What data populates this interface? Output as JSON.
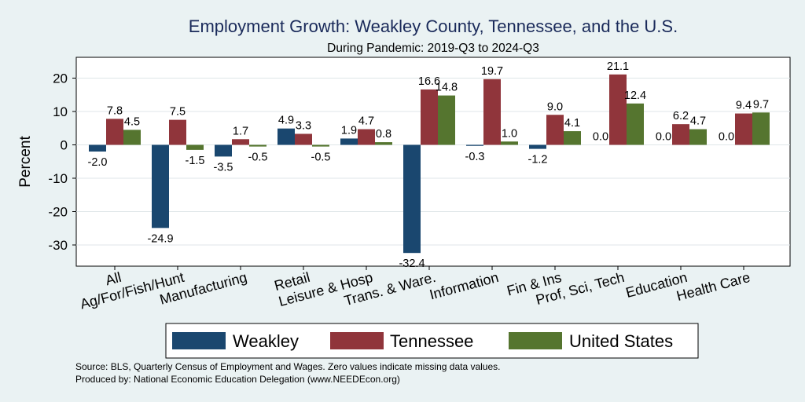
{
  "chart_data": {
    "type": "bar",
    "title": "Employment Growth: Weakley County, Tennessee, and the U.S.",
    "subtitle": "During Pandemic: 2019-Q3 to 2024-Q3",
    "ylabel": "Percent",
    "xlabel": "",
    "ylim": [
      -35,
      25
    ],
    "yticks": [
      20,
      10,
      0,
      -10,
      -20,
      -30
    ],
    "ytick_labels": [
      "20",
      "10",
      "0",
      "-10",
      "-20",
      "-30"
    ],
    "categories": [
      "All",
      "Ag/For/Fish/Hunt",
      "Manufacturing",
      "Retail",
      "Leisure & Hosp",
      "Trans. & Ware.",
      "Information",
      "Fin & Ins",
      "Prof, Sci, Tech",
      "Education",
      "Health Care"
    ],
    "series": [
      {
        "name": "Weakley",
        "color": "#1a476f",
        "values": [
          -2.0,
          -24.9,
          -3.5,
          4.9,
          1.9,
          -32.4,
          -0.3,
          -1.2,
          0.0,
          0.0,
          0.0
        ],
        "labels": [
          "-2.0",
          "-24.9",
          "-3.5",
          "4.9",
          "1.9",
          "-32.4",
          "-0.3",
          "-1.2",
          "0.0",
          "0.0",
          "0.0"
        ]
      },
      {
        "name": "Tennessee",
        "color": "#90353b",
        "values": [
          7.8,
          7.5,
          1.7,
          3.3,
          4.7,
          16.6,
          19.7,
          9.0,
          21.1,
          6.2,
          9.4
        ],
        "labels": [
          "7.8",
          "7.5",
          "1.7",
          "3.3",
          "4.7",
          "16.6",
          "19.7",
          "9.0",
          "21.1",
          "6.2",
          "9.4"
        ]
      },
      {
        "name": "United States",
        "color": "#55752f",
        "values": [
          4.5,
          -1.5,
          -0.5,
          -0.5,
          0.8,
          14.8,
          1.0,
          4.1,
          12.4,
          4.7,
          9.7
        ],
        "labels": [
          "4.5",
          "-1.5",
          "-0.5",
          "-0.5",
          "0.8",
          "14.8",
          "1.0",
          "4.1",
          "12.4",
          "4.7",
          "9.7"
        ]
      }
    ],
    "legend_position": "bottom",
    "grid": "horizontal"
  },
  "notes": {
    "source": "Source: BLS, Quarterly Census of Employment and Wages. Zero values indicate missing data values.",
    "produced_by": "Produced by: National Economic Education Delegation (www.NEEDEcon.org)"
  }
}
